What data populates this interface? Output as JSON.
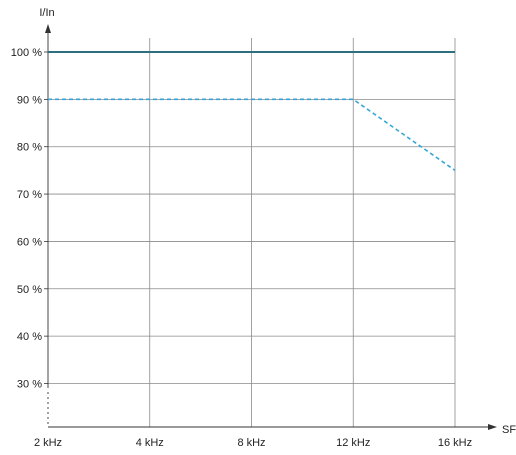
{
  "chart_data": {
    "type": "line",
    "x_categories": [
      "2 kHz",
      "4 kHz",
      "8 kHz",
      "12 kHz",
      "16 kHz"
    ],
    "y_ticks": [
      "30 %",
      "40 %",
      "50 %",
      "60 %",
      "70 %",
      "80 %",
      "90 %",
      "100 %"
    ],
    "ylabel": "I/In",
    "xlabel": "SF",
    "ylim": [
      25,
      100
    ],
    "grid": true,
    "series": [
      {
        "x": [
          "2 kHz",
          "4 kHz",
          "8 kHz",
          "12 kHz",
          "16 kHz"
        ],
        "values": [
          100,
          100,
          100,
          100,
          100
        ],
        "style": "solid",
        "color": "#2e6f7e"
      },
      {
        "x": [
          "2 kHz",
          "4 kHz",
          "8 kHz",
          "12 kHz",
          "16 kHz"
        ],
        "values": [
          90,
          90,
          90,
          90,
          75
        ],
        "style": "dashed",
        "color": "#35a6d6"
      }
    ]
  }
}
